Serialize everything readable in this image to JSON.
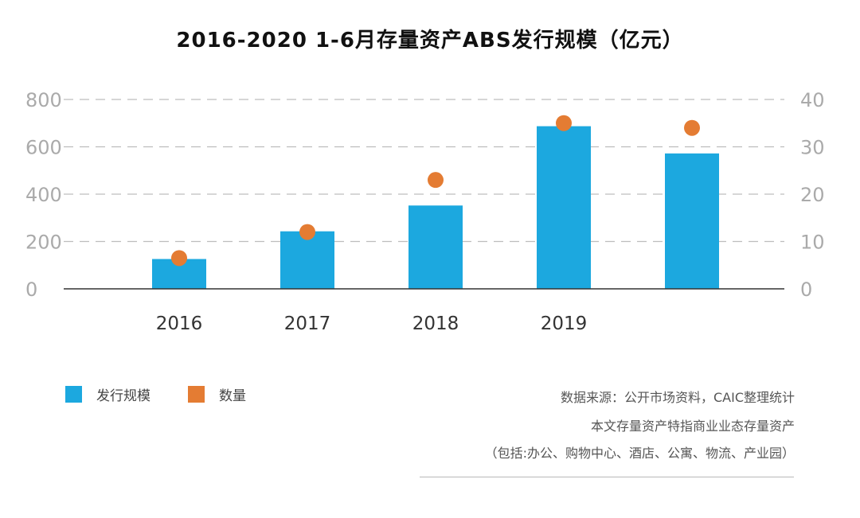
{
  "title": "2016-2020 1-6月存量资产ABS发行规模（亿元）",
  "legend": {
    "bar_label": "发行规模",
    "dot_label": "数量"
  },
  "colors": {
    "bar": "#1CA8DF",
    "dot": "#E47C33",
    "grid": "#bdbdbd",
    "axis": "#333333",
    "tick": "#aaaaaa"
  },
  "notes": {
    "source": "数据来源：公开市场资料，CAIC整理统计",
    "line1": "本文存量资产特指商业业态存量资产",
    "line2": "（包括:办公、购物中心、酒店、公寓、物流、产业园）"
  },
  "chart_data": {
    "type": "bar",
    "title": "2016-2020 1-6月存量资产ABS发行规模（亿元）",
    "categories": [
      "2016",
      "2017",
      "2018",
      "2019",
      ""
    ],
    "series": [
      {
        "name": "发行规模",
        "type": "bar",
        "axis": "left",
        "values": [
          126,
          243,
          352,
          687,
          572
        ]
      },
      {
        "name": "数量",
        "type": "scatter",
        "axis": "right",
        "values": [
          6.5,
          12,
          23,
          35,
          34
        ]
      }
    ],
    "ylim_left": [
      0,
      800
    ],
    "yticks_left": [
      "0",
      "200",
      "400",
      "600",
      "800"
    ],
    "ylim_right": [
      0,
      40
    ],
    "yticks_right": [
      "0",
      "10",
      "20",
      "30",
      "40"
    ],
    "grid": "dashed horizontal",
    "legend_position": "bottom-left"
  }
}
